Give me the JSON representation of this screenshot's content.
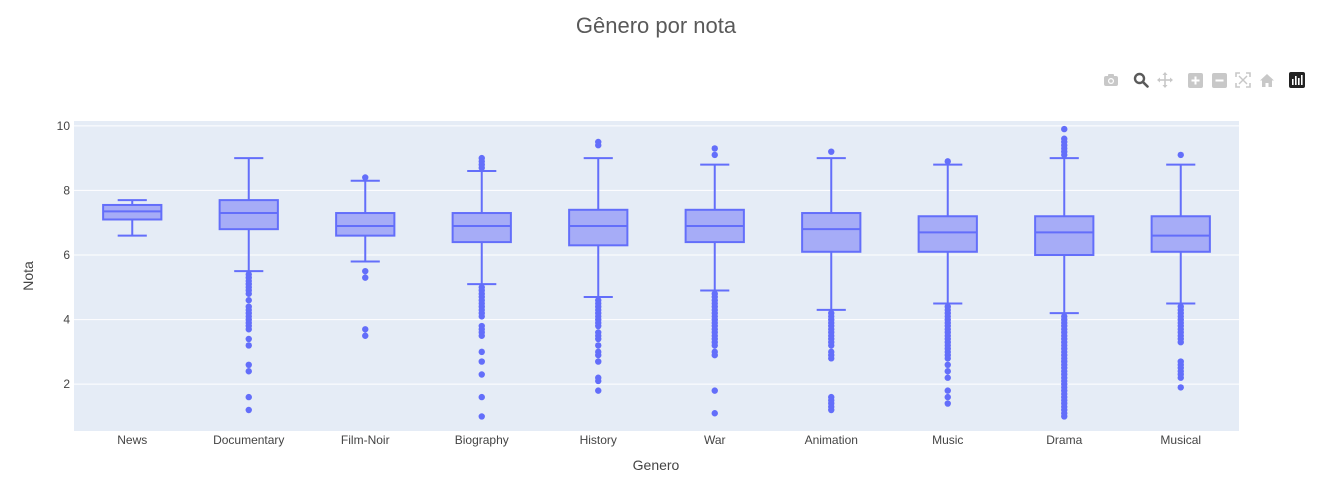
{
  "modebar": {
    "buttons": [
      {
        "name": "camera-icon",
        "color": "#c8c8c8"
      },
      {
        "name": "zoom-icon",
        "color": "#5a5a5a"
      },
      {
        "name": "pan-icon",
        "color": "#c8c8c8"
      },
      {
        "name": "zoom-in-icon",
        "color": "#c8c8c8"
      },
      {
        "name": "zoom-out-icon",
        "color": "#c8c8c8"
      },
      {
        "name": "autoscale-icon",
        "color": "#c8c8c8"
      },
      {
        "name": "reset-axes-icon",
        "color": "#c8c8c8"
      },
      {
        "name": "plotly-logo-icon",
        "color": "#222222"
      }
    ]
  },
  "chart_data": {
    "type": "box",
    "title": "Gênero por nota",
    "xlabel": "Genero",
    "ylabel": "Nota",
    "ylim": [
      0.55,
      10.15
    ],
    "yticks": [
      2,
      4,
      6,
      8,
      10
    ],
    "grid": true,
    "colors": {
      "line": "#636efa",
      "fill": "#a6acf7",
      "plot_bg": "#e5ecf6",
      "grid": "#ffffff"
    },
    "categories": [
      "News",
      "Documentary",
      "Film-Noir",
      "Biography",
      "History",
      "War",
      "Animation",
      "Music",
      "Drama",
      "Musical"
    ],
    "boxes": [
      {
        "category": "News",
        "min": 6.6,
        "q1": 7.1,
        "median": 7.35,
        "q3": 7.55,
        "max": 7.7,
        "outliers": []
      },
      {
        "category": "Documentary",
        "min": 5.5,
        "q1": 6.8,
        "median": 7.3,
        "q3": 7.7,
        "max": 9.0,
        "outliers": [
          5.4,
          5.3,
          5.2,
          5.1,
          5.0,
          4.9,
          4.8,
          4.6,
          4.4,
          4.3,
          4.2,
          4.1,
          4.0,
          3.9,
          3.8,
          3.7,
          3.4,
          3.2,
          2.6,
          2.4,
          1.6,
          1.2
        ]
      },
      {
        "category": "Film-Noir",
        "min": 5.8,
        "q1": 6.6,
        "median": 6.9,
        "q3": 7.3,
        "max": 8.3,
        "outliers": [
          8.4,
          5.5,
          5.3,
          3.7,
          3.5
        ]
      },
      {
        "category": "Biography",
        "min": 5.1,
        "q1": 6.4,
        "median": 6.9,
        "q3": 7.3,
        "max": 8.6,
        "outliers": [
          9.0,
          8.9,
          8.8,
          8.7,
          5.0,
          4.9,
          4.8,
          4.7,
          4.6,
          4.5,
          4.4,
          4.3,
          4.2,
          4.1,
          3.8,
          3.7,
          3.6,
          3.5,
          3.0,
          2.7,
          2.3,
          1.6,
          1.0
        ]
      },
      {
        "category": "History",
        "min": 4.7,
        "q1": 6.3,
        "median": 6.9,
        "q3": 7.4,
        "max": 9.0,
        "outliers": [
          9.5,
          9.4,
          4.6,
          4.5,
          4.4,
          4.3,
          4.2,
          4.1,
          4.0,
          3.9,
          3.8,
          3.6,
          3.5,
          3.4,
          3.2,
          3.0,
          2.9,
          2.7,
          2.2,
          2.1,
          1.8
        ]
      },
      {
        "category": "War",
        "min": 4.9,
        "q1": 6.4,
        "median": 6.9,
        "q3": 7.4,
        "max": 8.8,
        "outliers": [
          9.3,
          9.1,
          4.8,
          4.7,
          4.6,
          4.5,
          4.4,
          4.3,
          4.2,
          4.1,
          4.0,
          3.9,
          3.8,
          3.7,
          3.6,
          3.5,
          3.4,
          3.3,
          3.2,
          3.0,
          2.9,
          1.8,
          1.1
        ]
      },
      {
        "category": "Animation",
        "min": 4.3,
        "q1": 6.1,
        "median": 6.8,
        "q3": 7.3,
        "max": 9.0,
        "outliers": [
          9.2,
          4.2,
          4.1,
          4.0,
          3.9,
          3.8,
          3.7,
          3.6,
          3.5,
          3.4,
          3.3,
          3.2,
          3.0,
          2.9,
          2.8,
          1.6,
          1.5,
          1.4,
          1.3,
          1.2
        ]
      },
      {
        "category": "Music",
        "min": 4.5,
        "q1": 6.1,
        "median": 6.7,
        "q3": 7.2,
        "max": 8.8,
        "outliers": [
          8.9,
          4.4,
          4.3,
          4.2,
          4.1,
          4.0,
          3.9,
          3.8,
          3.7,
          3.6,
          3.5,
          3.4,
          3.3,
          3.2,
          3.1,
          3.0,
          2.9,
          2.8,
          2.6,
          2.4,
          2.2,
          1.8,
          1.6,
          1.4
        ]
      },
      {
        "category": "Drama",
        "min": 4.2,
        "q1": 6.0,
        "median": 6.7,
        "q3": 7.2,
        "max": 9.0,
        "outliers": [
          9.9,
          9.6,
          9.5,
          9.4,
          9.3,
          9.2,
          9.1,
          4.1,
          4.0,
          3.9,
          3.8,
          3.7,
          3.6,
          3.5,
          3.4,
          3.3,
          3.2,
          3.1,
          3.0,
          2.9,
          2.8,
          2.7,
          2.6,
          2.5,
          2.4,
          2.3,
          2.2,
          2.1,
          2.0,
          1.9,
          1.8,
          1.7,
          1.6,
          1.5,
          1.4,
          1.3,
          1.2,
          1.1,
          1.0
        ]
      },
      {
        "category": "Musical",
        "min": 4.5,
        "q1": 6.1,
        "median": 6.6,
        "q3": 7.2,
        "max": 8.8,
        "outliers": [
          9.1,
          4.4,
          4.3,
          4.2,
          4.1,
          4.0,
          3.9,
          3.8,
          3.7,
          3.6,
          3.5,
          3.4,
          3.3,
          2.7,
          2.6,
          2.5,
          2.4,
          2.3,
          2.2,
          1.9
        ]
      }
    ]
  }
}
